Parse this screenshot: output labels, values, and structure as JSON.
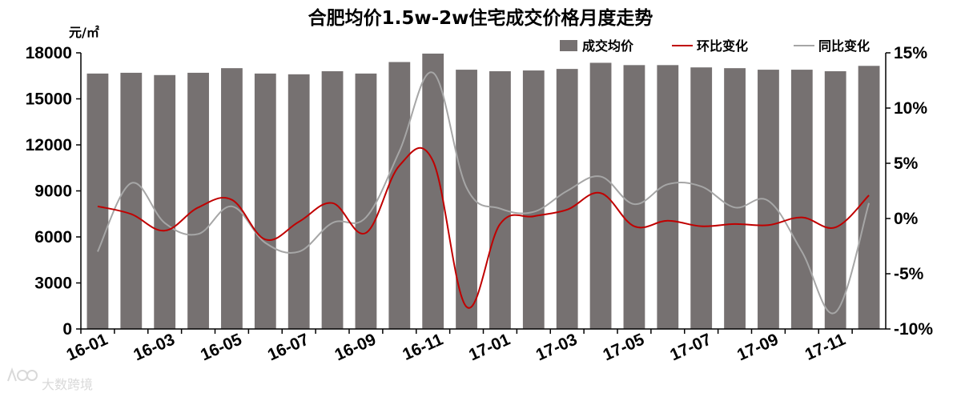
{
  "chart_data": {
    "type": "bar+line",
    "title": "合肥均价1.5w-2w住宅成交价格月度走势",
    "y_left_unit": "元/㎡",
    "y_left_range": [
      0,
      18000
    ],
    "y_left_ticks": [
      "0",
      "3000",
      "6000",
      "9000",
      "12000",
      "15000",
      "18000"
    ],
    "y_right_range": [
      -10,
      15
    ],
    "y_right_ticks": [
      "-10%",
      "-5%",
      "0%",
      "5%",
      "10%",
      "15%"
    ],
    "categories": [
      "16-01",
      "16-02",
      "16-03",
      "16-04",
      "16-05",
      "16-06",
      "16-07",
      "16-08",
      "16-09",
      "16-10",
      "16-11",
      "16-12",
      "17-01",
      "17-02",
      "17-03",
      "17-04",
      "17-05",
      "17-06",
      "17-07",
      "17-08",
      "17-09",
      "17-10",
      "17-11",
      "17-12"
    ],
    "x_tick_labels": [
      "16-01",
      "16-03",
      "16-05",
      "16-07",
      "16-09",
      "16-11",
      "17-01",
      "17-03",
      "17-05",
      "17-07",
      "17-09",
      "17-11"
    ],
    "series": [
      {
        "name": "成交均价",
        "type": "bar",
        "axis": "left",
        "color": "#767171",
        "values": [
          16650,
          16700,
          16550,
          16700,
          17000,
          16650,
          16600,
          16800,
          16650,
          17400,
          17950,
          16900,
          16800,
          16850,
          16950,
          17350,
          17200,
          17200,
          17050,
          17000,
          16900,
          16900,
          16800,
          17150
        ]
      },
      {
        "name": "环比变化",
        "type": "line",
        "axis": "right",
        "color": "#c00000",
        "values": [
          1.1,
          0.4,
          -1.1,
          1.0,
          1.7,
          -1.9,
          -0.3,
          1.4,
          -1.3,
          4.8,
          5.2,
          -8.0,
          -0.5,
          0.2,
          0.8,
          2.3,
          -0.7,
          -0.2,
          -0.7,
          -0.5,
          -0.6,
          0.1,
          -0.8,
          2.1
        ]
      },
      {
        "name": "同比变化",
        "type": "line",
        "axis": "right",
        "color": "#a6a6a6",
        "values": [
          -3.0,
          3.2,
          -0.4,
          -1.4,
          1.1,
          -2.2,
          -3.0,
          -0.4,
          0.1,
          6.1,
          13.2,
          2.8,
          0.9,
          0.6,
          2.5,
          3.8,
          1.3,
          3.1,
          2.9,
          1.0,
          1.6,
          -3.0,
          -8.5,
          1.4
        ]
      }
    ],
    "legend_position": "top-right",
    "grid": false
  },
  "watermark": "大数跨境"
}
